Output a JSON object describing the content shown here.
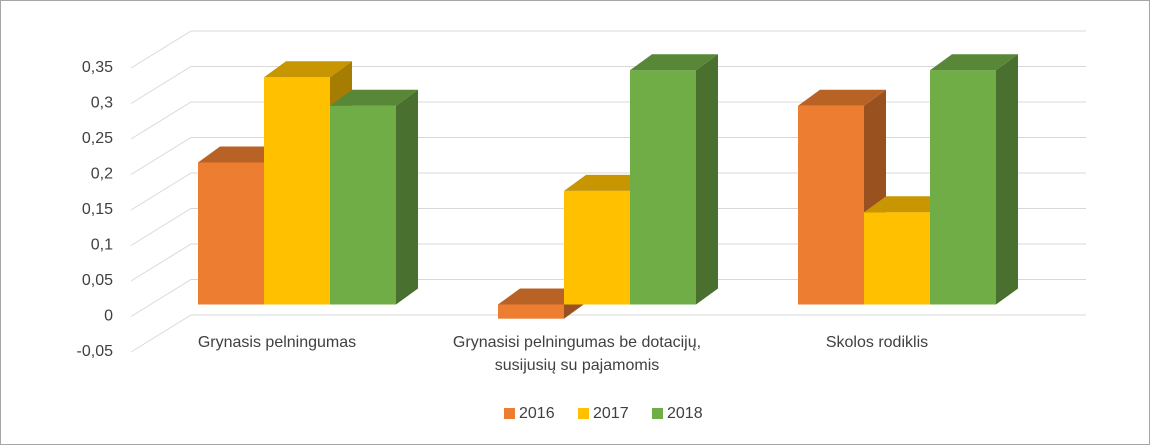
{
  "chart_data": {
    "type": "bar3d",
    "categories": [
      "Grynasis pelningumas",
      "Grynasisi pelningumas be dotacijų, susijusių su pajamomis",
      "Skolos rodiklis"
    ],
    "series": [
      {
        "name": "2016",
        "color": "#ed7d31",
        "values": [
          0.2,
          -0.02,
          0.28
        ]
      },
      {
        "name": "2017",
        "color": "#ffc000",
        "values": [
          0.32,
          0.16,
          0.13
        ]
      },
      {
        "name": "2018",
        "color": "#70ad47",
        "values": [
          0.28,
          0.33,
          0.33
        ]
      }
    ],
    "ylim": [
      -0.05,
      0.35
    ],
    "yticks": [
      {
        "value": -0.05,
        "label": "-0,05"
      },
      {
        "value": 0,
        "label": "0"
      },
      {
        "value": 0.05,
        "label": "0,05"
      },
      {
        "value": 0.1,
        "label": "0,1"
      },
      {
        "value": 0.15,
        "label": "0,15"
      },
      {
        "value": 0.2,
        "label": "0,2"
      },
      {
        "value": 0.25,
        "label": "0,25"
      },
      {
        "value": 0.3,
        "label": "0,3"
      },
      {
        "value": 0.35,
        "label": "0,35"
      }
    ],
    "grid": true,
    "legend": "bottom"
  }
}
